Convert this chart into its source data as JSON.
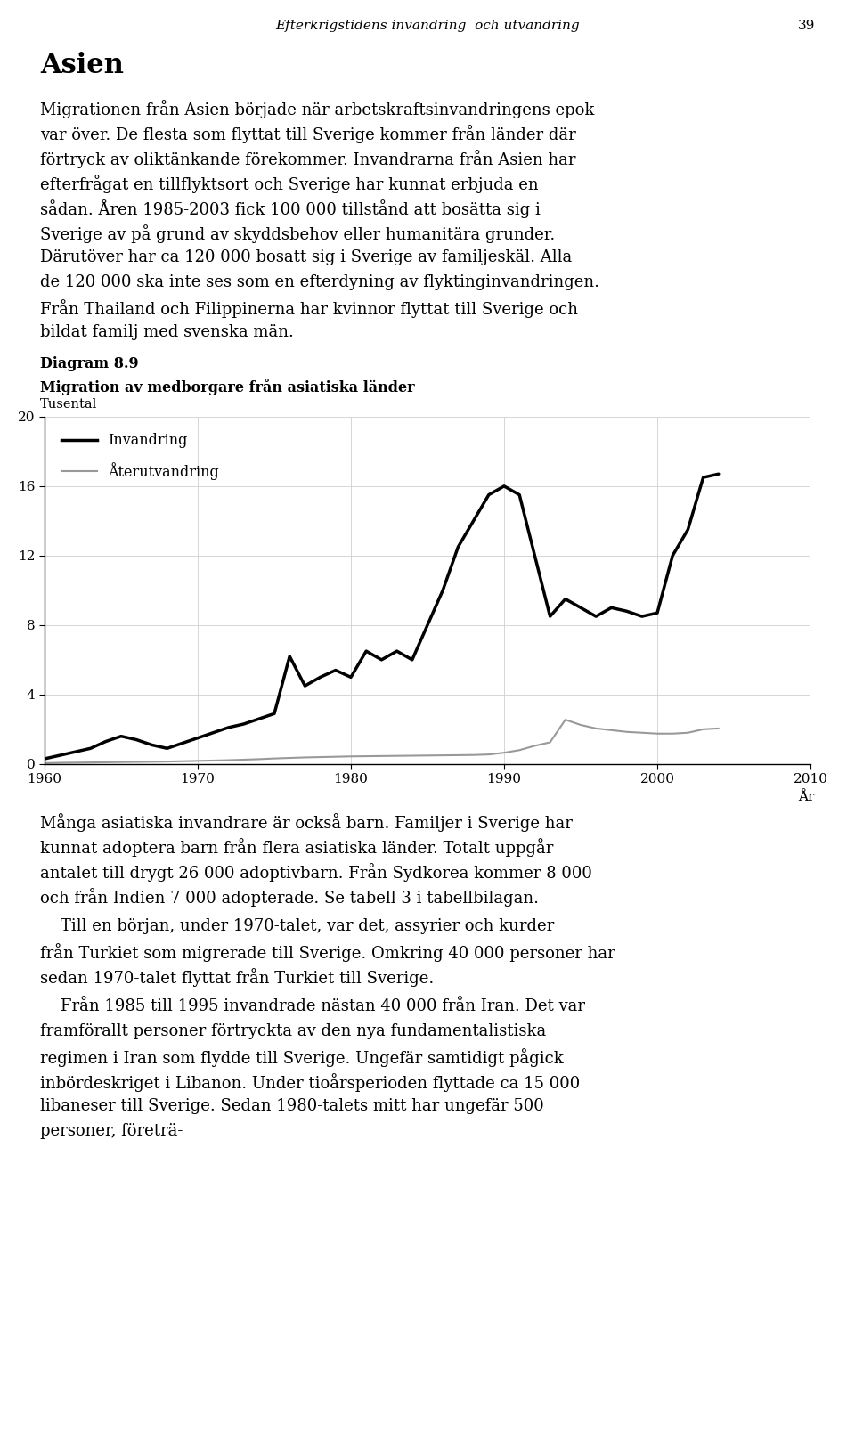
{
  "page_title_italic": "Efterkrigstidens invandring  och utvandring",
  "page_number": "39",
  "section_title": "Asien",
  "paragraph1": "Migrationen från Asien började när arbetskraftsinvandringens epok var över. De flesta som flyttat till Sverige kommer från länder där förtryck av oliktänkande förekommer. Invandrarna från Asien har efterfrågat en tillflyktsort och Sverige har kunnat erbjuda en sådan. Åren 1985-2003 fick 100 000 tillstånd att bosätta sig i Sverige av på grund av skyddsbehov eller humanitära grunder. Därutöver har ca 120 000 bosatt sig i Sverige av familjeskäl. Alla de 120 000 ska inte ses som en efterdyning av flyktinginvandringen. Från Thailand och Filippinerna har kvinnor flyttat till Sverige och bildat familj med svenska män.",
  "diagram_label": "Diagram 8.9",
  "diagram_title": "Migration av medborgare från asiatiska länder",
  "y_label": "Tusental",
  "x_label": "År",
  "yticks": [
    0,
    4,
    8,
    12,
    16,
    20
  ],
  "xticks": [
    1960,
    1970,
    1980,
    1990,
    2000,
    2010
  ],
  "xlim": [
    1960,
    2010
  ],
  "ylim": [
    0,
    20
  ],
  "legend_invandring": "Invandring",
  "legend_aterutvandring": "Återutvandring",
  "invandring_x": [
    1960,
    1961,
    1962,
    1963,
    1964,
    1965,
    1966,
    1967,
    1968,
    1969,
    1970,
    1971,
    1972,
    1973,
    1974,
    1975,
    1976,
    1977,
    1978,
    1979,
    1980,
    1981,
    1982,
    1983,
    1984,
    1985,
    1986,
    1987,
    1988,
    1989,
    1990,
    1991,
    1992,
    1993,
    1994,
    1995,
    1996,
    1997,
    1998,
    1999,
    2000,
    2001,
    2002,
    2003,
    2004
  ],
  "invandring_y": [
    0.3,
    0.5,
    0.7,
    0.9,
    1.3,
    1.6,
    1.4,
    1.1,
    0.9,
    1.2,
    1.5,
    1.8,
    2.1,
    2.3,
    2.6,
    2.9,
    6.2,
    4.5,
    5.0,
    5.4,
    5.0,
    6.5,
    6.0,
    6.5,
    6.0,
    8.0,
    10.0,
    12.5,
    14.0,
    15.5,
    16.0,
    15.5,
    12.0,
    8.5,
    9.5,
    9.0,
    8.5,
    9.0,
    8.8,
    8.5,
    8.7,
    12.0,
    13.5,
    16.5,
    16.7
  ],
  "aterutvandring_x": [
    1960,
    1961,
    1962,
    1963,
    1964,
    1965,
    1966,
    1967,
    1968,
    1969,
    1970,
    1971,
    1972,
    1973,
    1974,
    1975,
    1976,
    1977,
    1978,
    1979,
    1980,
    1981,
    1982,
    1983,
    1984,
    1985,
    1986,
    1987,
    1988,
    1989,
    1990,
    1991,
    1992,
    1993,
    1994,
    1995,
    1996,
    1997,
    1998,
    1999,
    2000,
    2001,
    2002,
    2003,
    2004
  ],
  "aterutvandring_y": [
    0.05,
    0.07,
    0.08,
    0.09,
    0.1,
    0.11,
    0.12,
    0.13,
    0.14,
    0.16,
    0.18,
    0.2,
    0.22,
    0.25,
    0.28,
    0.32,
    0.35,
    0.38,
    0.4,
    0.42,
    0.44,
    0.45,
    0.46,
    0.47,
    0.48,
    0.49,
    0.5,
    0.51,
    0.52,
    0.55,
    0.65,
    0.8,
    1.05,
    1.25,
    2.55,
    2.25,
    2.05,
    1.95,
    1.85,
    1.8,
    1.75,
    1.75,
    1.8,
    2.0,
    2.05
  ],
  "paragraph2": "Många asiatiska invandrare är också barn. Familjer i Sverige har kunnat adoptera barn från flera asiatiska länder. Totalt uppgår antalet till drygt 26 000 adoptivbarn. Från Sydkorea kommer 8 000 och från Indien 7 000 adopterade. Se tabell 3 i tabellbilagan.",
  "paragraph3": "Till en början, under 1970-talet, var det, assyrier och kurder från Turkiet som migrerade till Sverige. Omkring 40 000 personer har sedan 1970-talet flyttat från Turkiet till Sverige.",
  "paragraph4": "Från 1985 till 1995 invandrade nästan 40 000 från Iran. Det var framförallt personer förtryckta av den nya fundamentalistiska regimen i Iran som flydde till Sverige. Ungefär samtidigt pågick inbördeskriget i Libanon. Under tioårsperioden flyttade ca 15 000 libaneser till Sverige. Sedan 1980-talets mitt har ungefär 500 personer, företrä-",
  "bg_color": "#ffffff",
  "text_color": "#000000",
  "line_color_invandring": "#000000",
  "line_color_aterutvandring": "#999999",
  "grid_color": "#d0d0d0"
}
